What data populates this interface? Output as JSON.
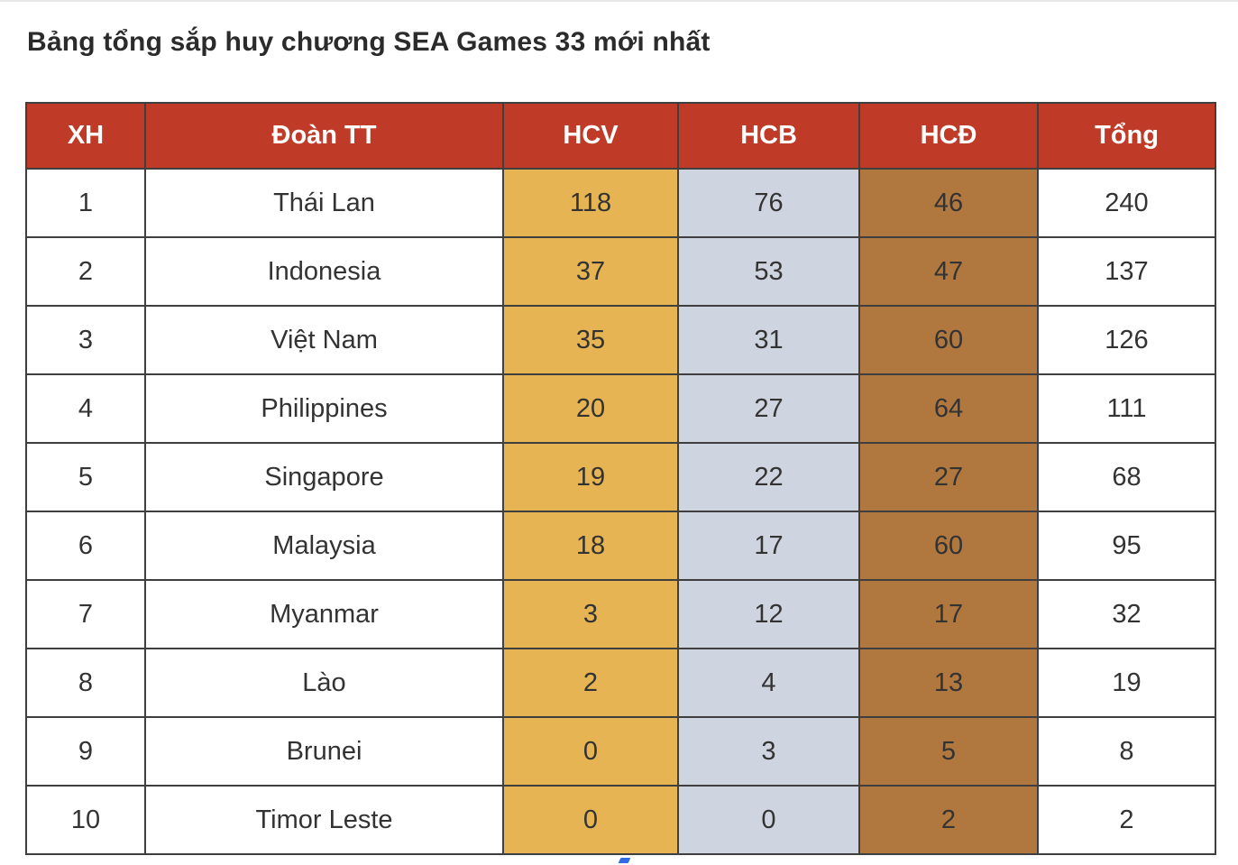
{
  "page": {
    "title": "Bảng tổng sắp huy chương SEA Games 33 mới nhất"
  },
  "table": {
    "columns": [
      "XH",
      "Đoàn TT",
      "HCV",
      "HCB",
      "HCĐ",
      "Tổng"
    ],
    "rows": [
      {
        "rank": "1",
        "team": "Thái Lan",
        "gold": "118",
        "silver": "76",
        "bronze": "46",
        "total": "240"
      },
      {
        "rank": "2",
        "team": "Indonesia",
        "gold": "37",
        "silver": "53",
        "bronze": "47",
        "total": "137"
      },
      {
        "rank": "3",
        "team": "Việt Nam",
        "gold": "35",
        "silver": "31",
        "bronze": "60",
        "total": "126"
      },
      {
        "rank": "4",
        "team": "Philippines",
        "gold": "20",
        "silver": "27",
        "bronze": "64",
        "total": "111"
      },
      {
        "rank": "5",
        "team": "Singapore",
        "gold": "19",
        "silver": "22",
        "bronze": "27",
        "total": "68"
      },
      {
        "rank": "6",
        "team": "Malaysia",
        "gold": "18",
        "silver": "17",
        "bronze": "60",
        "total": "95"
      },
      {
        "rank": "7",
        "team": "Myanmar",
        "gold": "3",
        "silver": "12",
        "bronze": "17",
        "total": "32"
      },
      {
        "rank": "8",
        "team": "Lào",
        "gold": "2",
        "silver": "4",
        "bronze": "13",
        "total": "19"
      },
      {
        "rank": "9",
        "team": "Brunei",
        "gold": "0",
        "silver": "3",
        "bronze": "5",
        "total": "8"
      },
      {
        "rank": "10",
        "team": "Timor Leste",
        "gold": "0",
        "silver": "0",
        "bronze": "2",
        "total": "2"
      }
    ]
  },
  "colors": {
    "header_bg": "#c03a28",
    "gold_bg": "#e6b452",
    "silver_bg": "#ced4e0",
    "bronze_bg": "#b0783f",
    "border": "#3f3f3f",
    "text": "#333333",
    "header_text": "#ffffff",
    "artifact_blue": "#2f6be4"
  },
  "chart_data": {
    "type": "table",
    "title": "Bảng tổng sắp huy chương SEA Games 33 mới nhất",
    "columns": [
      "XH",
      "Đoàn TT",
      "HCV",
      "HCB",
      "HCĐ",
      "Tổng"
    ],
    "rows": [
      [
        1,
        "Thái Lan",
        118,
        76,
        46,
        240
      ],
      [
        2,
        "Indonesia",
        37,
        53,
        47,
        137
      ],
      [
        3,
        "Việt Nam",
        35,
        31,
        60,
        126
      ],
      [
        4,
        "Philippines",
        20,
        27,
        64,
        111
      ],
      [
        5,
        "Singapore",
        19,
        22,
        27,
        68
      ],
      [
        6,
        "Malaysia",
        18,
        17,
        60,
        95
      ],
      [
        7,
        "Myanmar",
        3,
        12,
        17,
        32
      ],
      [
        8,
        "Lào",
        2,
        4,
        13,
        19
      ],
      [
        9,
        "Brunei",
        0,
        3,
        5,
        8
      ],
      [
        10,
        "Timor Leste",
        0,
        0,
        2,
        2
      ]
    ],
    "column_semantics": {
      "XH": "rank",
      "Đoàn TT": "team",
      "HCV": "gold medals",
      "HCB": "silver medals",
      "HCĐ": "bronze medals",
      "Tổng": "total medals"
    },
    "legend_position": "none",
    "grid": true
  }
}
